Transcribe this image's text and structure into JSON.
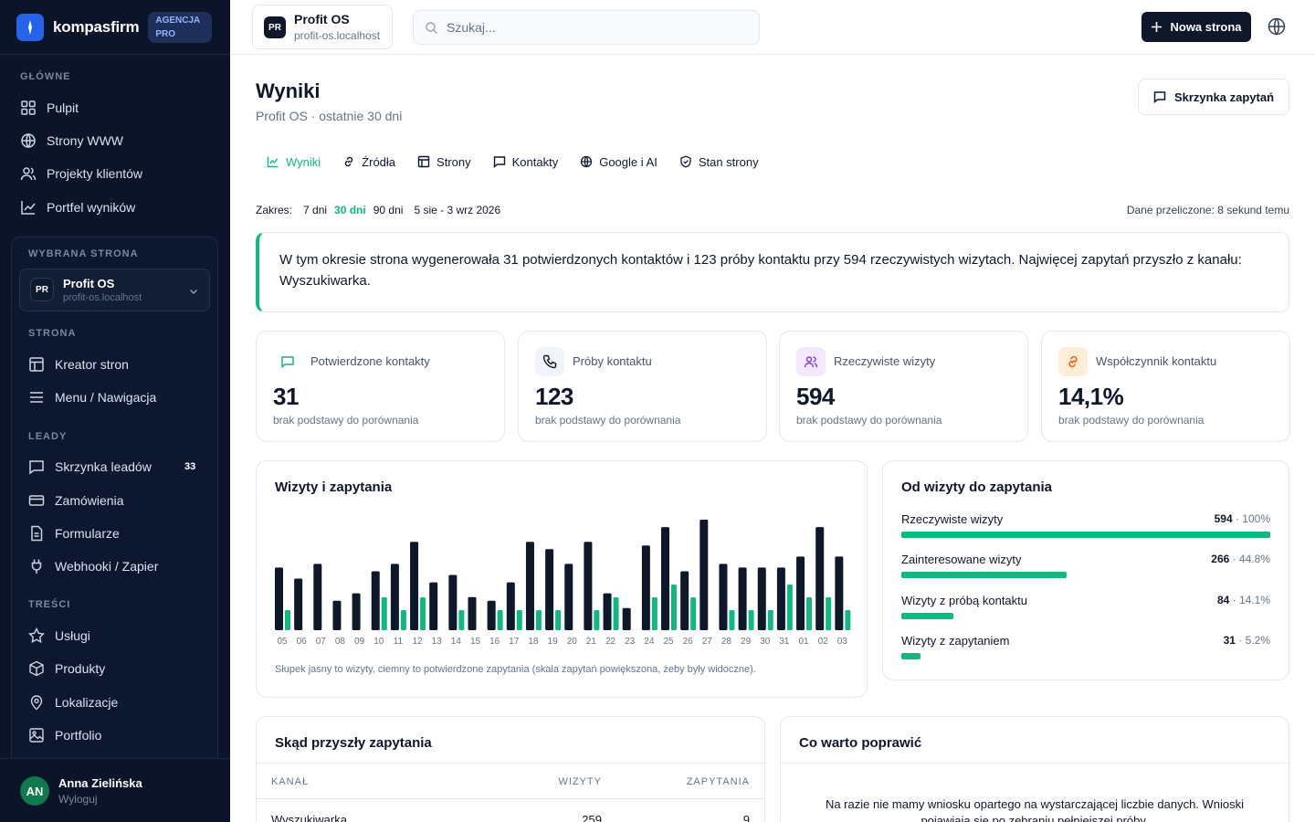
{
  "brand": {
    "name": "kompasfirm",
    "badge": "AGENCJA PRO"
  },
  "sidebar": {
    "main_label": "GŁÓWNE",
    "main_items": [
      {
        "label": "Pulpit",
        "icon": "grid-icon"
      },
      {
        "label": "Strony WWW",
        "icon": "globe-icon"
      },
      {
        "label": "Projekty klientów",
        "icon": "users-icon"
      },
      {
        "label": "Portfel wyników",
        "icon": "chart-line-icon"
      }
    ],
    "selected_label": "WYBRANA STRONA",
    "selected_site": {
      "initials": "PR",
      "name": "Profit OS",
      "domain": "profit-os.localhost"
    },
    "page_label": "STRONA",
    "page_items": [
      {
        "label": "Kreator stron",
        "icon": "layout-icon"
      },
      {
        "label": "Menu / Nawigacja",
        "icon": "menu-icon"
      }
    ],
    "leads_label": "LEADY",
    "leads_items": [
      {
        "label": "Skrzynka leadów",
        "icon": "inbox-icon",
        "count": "33"
      },
      {
        "label": "Zamówienia",
        "icon": "card-icon"
      },
      {
        "label": "Formularze",
        "icon": "form-icon"
      },
      {
        "label": "Webhooki / Zapier",
        "icon": "plug-icon"
      }
    ],
    "content_label": "TREŚCI",
    "content_items": [
      {
        "label": "Usługi",
        "icon": "star-icon"
      },
      {
        "label": "Produkty",
        "icon": "box-icon"
      },
      {
        "label": "Lokalizacje",
        "icon": "pin-icon"
      },
      {
        "label": "Portfolio",
        "icon": "image-icon"
      }
    ],
    "user": {
      "initials": "AN",
      "name": "Anna Zielińska",
      "logout": "Wyloguj"
    }
  },
  "topbar": {
    "site": {
      "initials": "PR",
      "name": "Profit OS",
      "domain": "profit-os.localhost"
    },
    "search_placeholder": "Szukaj...",
    "new_button": "Nowa strona"
  },
  "page": {
    "title": "Wyniki",
    "subtitle": "Profit OS · ostatnie 30 dni",
    "inbox_button": "Skrzynka zapytań",
    "tabs": [
      "Wyniki",
      "Źródła",
      "Strony",
      "Kontakty",
      "Google i AI",
      "Stan strony"
    ],
    "active_tab": "Wyniki",
    "range_label": "Zakres:",
    "ranges": [
      "7 dni",
      "30 dni",
      "90 dni",
      "5 sie - 3 wrz 2026"
    ],
    "active_range": "30 dni",
    "recalculated": "Dane przeliczone: 8 sekund temu",
    "summary": "W tym okresie strona wygenerowała 31 potwierdzonych kontaktów i 123 próby kontaktu przy 594 rzeczywistych wizytach. Najwięcej zapytań przyszło z kanału: Wyszukiwarka."
  },
  "kpis": [
    {
      "label": "Potwierdzone kontakty",
      "value": "31",
      "note": "brak podstawy do porównania",
      "icon": "message-icon",
      "accent": "#10b981"
    },
    {
      "label": "Próby kontaktu",
      "value": "123",
      "note": "brak podstawy do porównania",
      "icon": "phone-icon",
      "accent": "#0f172a"
    },
    {
      "label": "Rzeczywiste wizyty",
      "value": "594",
      "note": "brak podstawy do porównania",
      "icon": "users-icon",
      "accent": "#7c3aed"
    },
    {
      "label": "Współczynnik kontaktu",
      "value": "14,1%",
      "note": "brak podstawy do porównania",
      "icon": "link-icon",
      "accent": "#ea580c"
    }
  ],
  "visits_chart": {
    "title": "Wizyty i zapytania",
    "caption": "Słupek jasny to wizyty, ciemny to potwierdzone zapytania (skala zapytań powiększona, żeby były widoczne).",
    "colors": {
      "visits": "#0f172a",
      "inquiries": "#10b981"
    }
  },
  "chart_data": {
    "type": "bar",
    "categories": [
      "05",
      "06",
      "07",
      "08",
      "09",
      "10",
      "11",
      "12",
      "13",
      "14",
      "15",
      "16",
      "17",
      "18",
      "19",
      "20",
      "21",
      "22",
      "23",
      "24",
      "25",
      "26",
      "27",
      "28",
      "29",
      "30",
      "31",
      "01",
      "02",
      "03"
    ],
    "series": [
      {
        "name": "wizyty",
        "values": [
          17,
          14,
          18,
          8,
          10,
          16,
          18,
          24,
          13,
          15,
          9,
          8,
          13,
          24,
          22,
          18,
          24,
          10,
          6,
          23,
          28,
          16,
          30,
          18,
          17,
          17,
          17,
          20,
          28,
          20
        ]
      },
      {
        "name": "zapytania",
        "values": [
          1,
          0,
          0,
          0,
          0,
          2,
          1,
          2,
          0,
          1,
          0,
          1,
          1,
          1,
          1,
          0,
          1,
          2,
          0,
          2,
          3,
          2,
          0,
          1,
          1,
          1,
          3,
          2,
          2,
          1
        ]
      }
    ]
  },
  "funnel": {
    "title": "Od wizyty do zapytania",
    "rows": [
      {
        "label": "Rzeczywiste wizyty",
        "value": "594",
        "pct": "100%",
        "fraction": 1.0
      },
      {
        "label": "Zainteresowane wizyty",
        "value": "266",
        "pct": "44.8%",
        "fraction": 0.448
      },
      {
        "label": "Wizyty z próbą kontaktu",
        "value": "84",
        "pct": "14.1%",
        "fraction": 0.141
      },
      {
        "label": "Wizyty z zapytaniem",
        "value": "31",
        "pct": "5.2%",
        "fraction": 0.052
      }
    ]
  },
  "sources": {
    "title": "Skąd przyszły zapytania",
    "columns": [
      "KANAŁ",
      "WIZYTY",
      "ZAPYTANIA"
    ],
    "rows": [
      {
        "channel": "Wyszukiwarka",
        "visits": "259",
        "inquiries": "9"
      }
    ]
  },
  "improve": {
    "title": "Co warto poprawić",
    "text": "Na razie nie mamy wniosku opartego na wystarczającej liczbie danych. Wnioski pojawiają się po zebraniu pełniejszej próby."
  }
}
